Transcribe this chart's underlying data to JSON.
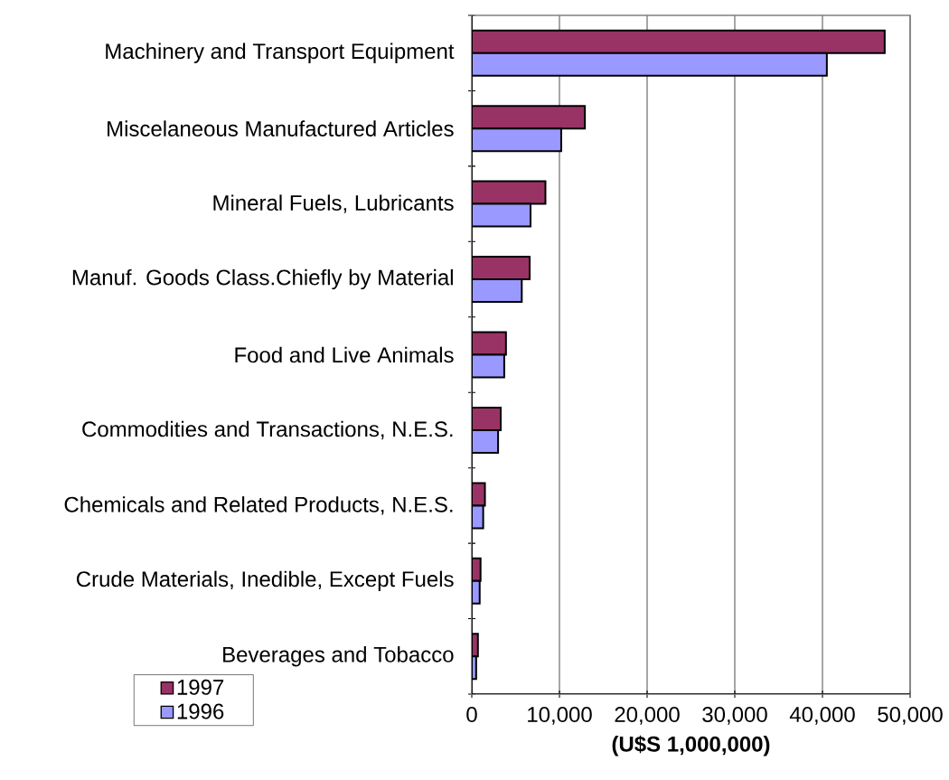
{
  "chart_data": {
    "type": "bar",
    "orientation": "horizontal",
    "xlabel": "(U$S 1,000,000)",
    "categories": [
      "Machinery and Transport Equipment",
      "Miscelaneous Manufactured Articles",
      "Mineral Fuels, Lubricants",
      "Manuf. Goods Class.Chiefly by Material",
      "Food and Live Animals",
      "Commodities and Transactions, N.E.S.",
      "Chemicals and Related Products, N.E.S.",
      "Crude Materials, Inedible, Except Fuels",
      "Beverages and Tobacco"
    ],
    "series": [
      {
        "name": "1997",
        "color": "#993366",
        "values": [
          47100,
          12900,
          8400,
          6600,
          3900,
          3300,
          1500,
          1000,
          700
        ]
      },
      {
        "name": "1996",
        "color": "#9999ff",
        "values": [
          40500,
          10200,
          6700,
          5700,
          3700,
          3000,
          1300,
          900,
          500
        ]
      }
    ],
    "xlim": [
      0,
      50000
    ],
    "xticks": [
      {
        "value": 0,
        "label": "0"
      },
      {
        "value": 10000,
        "label": "10,000"
      },
      {
        "value": 20000,
        "label": "20,000"
      },
      {
        "value": 30000,
        "label": "30,000"
      },
      {
        "value": 40000,
        "label": "40,000"
      },
      {
        "value": 50000,
        "label": "50,000"
      }
    ],
    "grid": "x",
    "legend": "bottom left"
  }
}
